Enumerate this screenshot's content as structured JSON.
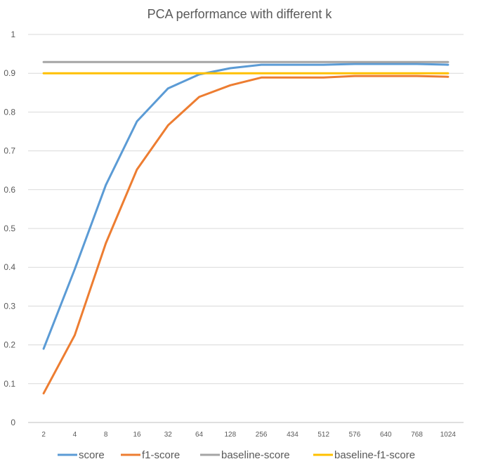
{
  "chart_data": {
    "type": "line",
    "title": "PCA performance with different k",
    "xlabel": "",
    "ylabel": "",
    "categories": [
      "2",
      "4",
      "8",
      "16",
      "32",
      "64",
      "128",
      "256",
      "434",
      "512",
      "576",
      "640",
      "768",
      "1024"
    ],
    "ylim": [
      0,
      1
    ],
    "yticks": [
      "0",
      "0.1",
      "0.2",
      "0.3",
      "0.4",
      "0.5",
      "0.6",
      "0.7",
      "0.8",
      "0.9",
      "1"
    ],
    "grid": true,
    "legend_position": "bottom",
    "series": [
      {
        "name": "score",
        "color": "#5b9bd5",
        "values": [
          0.19,
          0.395,
          0.612,
          0.776,
          0.861,
          0.897,
          0.913,
          0.922,
          0.922,
          0.922,
          0.924,
          0.924,
          0.924,
          0.922
        ]
      },
      {
        "name": "f1-score",
        "color": "#ed7d31",
        "values": [
          0.075,
          0.225,
          0.462,
          0.652,
          0.766,
          0.839,
          0.869,
          0.889,
          0.889,
          0.889,
          0.893,
          0.893,
          0.893,
          0.891
        ]
      },
      {
        "name": "baseline-score",
        "color": "#a5a5a5",
        "values": [
          0.929,
          0.929,
          0.929,
          0.929,
          0.929,
          0.929,
          0.929,
          0.929,
          0.929,
          0.929,
          0.929,
          0.929,
          0.929,
          0.929
        ]
      },
      {
        "name": "baseline-f1-score",
        "color": "#ffc000",
        "values": [
          0.9,
          0.9,
          0.9,
          0.9,
          0.9,
          0.9,
          0.9,
          0.9,
          0.9,
          0.9,
          0.9,
          0.9,
          0.9,
          0.9
        ]
      }
    ]
  }
}
